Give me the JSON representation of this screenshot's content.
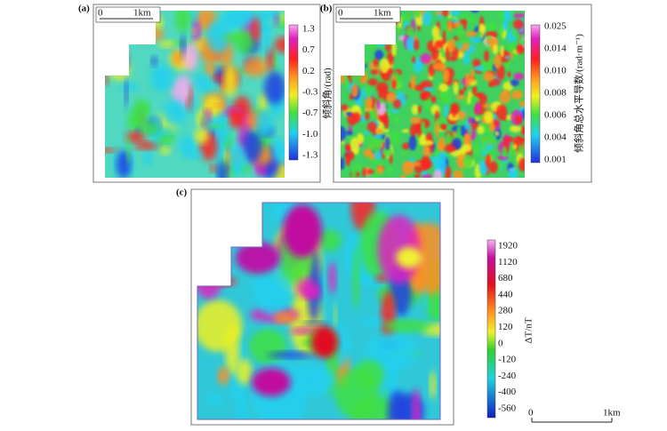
{
  "panels": [
    {
      "label": "(a)",
      "scale_bar": {
        "start": "0",
        "end": "1km"
      },
      "colorbar": {
        "title": "倾斜角/(rad)",
        "ticks": [
          "1.3",
          "0.7",
          "0.2",
          "-0.3",
          "-0.7",
          "-1.0",
          "-1.3"
        ]
      }
    },
    {
      "label": "(b)",
      "scale_bar": {
        "start": "0",
        "end": "1km"
      },
      "colorbar": {
        "title": "倾斜角总水平导数/(rad·m⁻¹)",
        "ticks": [
          "0.025",
          "0.014",
          "0.010",
          "0.008",
          "0.006",
          "0.004",
          "0.001"
        ]
      }
    },
    {
      "label": "(c)",
      "scale_bar": {
        "start": "0",
        "end": "1km"
      },
      "colorbar": {
        "title": "ΔT/nT",
        "ticks": [
          "1920",
          "1120",
          "680",
          "440",
          "280",
          "120",
          "0",
          "-120",
          "-240",
          "-400",
          "-560"
        ]
      }
    }
  ]
}
